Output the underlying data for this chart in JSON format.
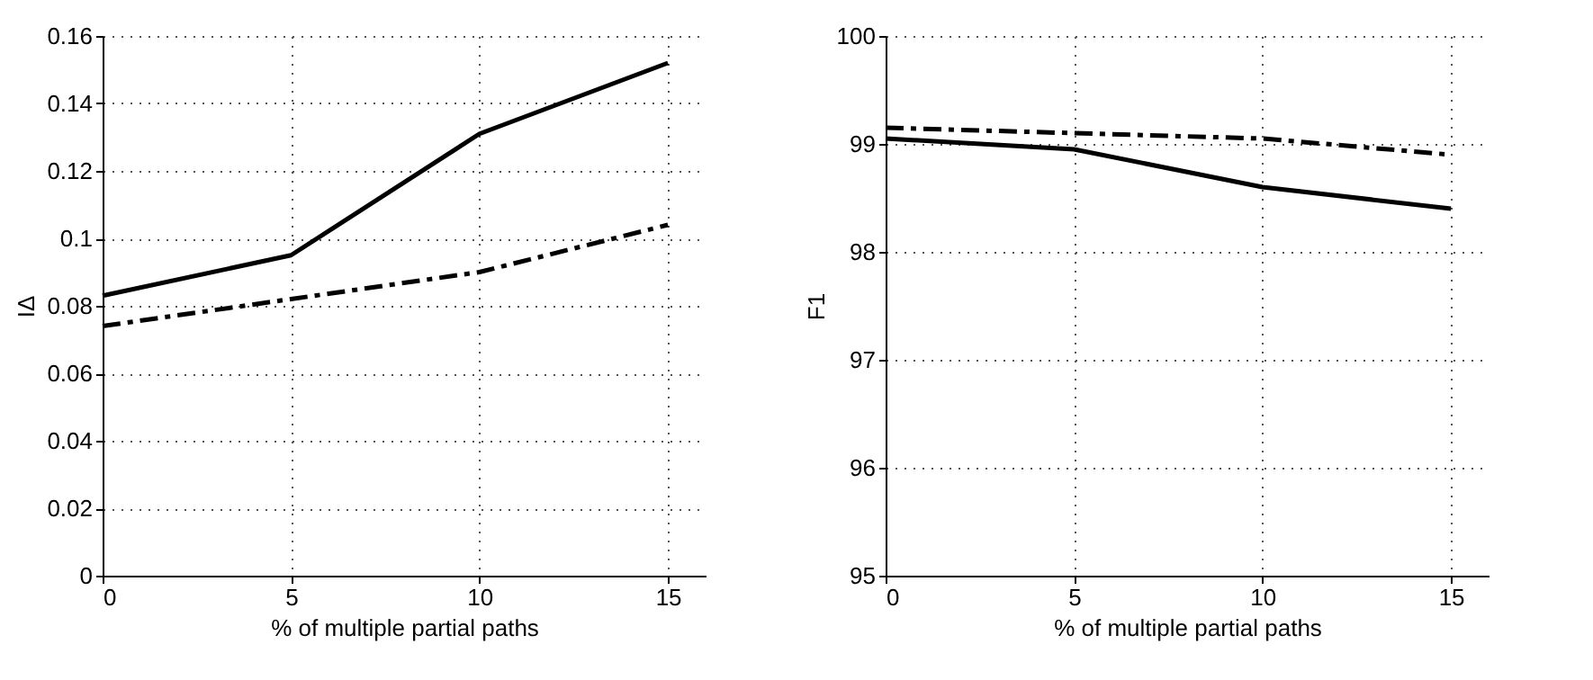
{
  "chart_data": [
    {
      "type": "line",
      "xlabel": "% of multiple partial paths",
      "ylabel": "IΔ",
      "x": [
        0,
        5,
        10,
        15
      ],
      "xlim": [
        0,
        16
      ],
      "xticks": [
        0,
        5,
        10,
        15
      ],
      "ylim": [
        0,
        0.16
      ],
      "yticks": [
        0,
        0.02,
        0.04,
        0.06,
        0.08,
        {
          "value": 0.1,
          "label": "0.1"
        },
        0.12,
        0.14,
        0.16
      ],
      "grid": true,
      "legend": false,
      "series": [
        {
          "color": "#000000",
          "line_style": "solid",
          "values": [
            0.083,
            0.095,
            0.131,
            0.152
          ]
        },
        {
          "color": "#000000",
          "line_style": "dashed",
          "values": [
            0.074,
            0.082,
            0.09,
            0.104
          ]
        }
      ]
    },
    {
      "type": "line",
      "xlabel": "% of multiple partial paths",
      "ylabel": "F1",
      "x": [
        0,
        5,
        10,
        15
      ],
      "xlim": [
        0,
        16
      ],
      "xticks": [
        0,
        5,
        10,
        15
      ],
      "ylim": [
        95,
        100
      ],
      "yticks": [
        95,
        96,
        97,
        98,
        99,
        100
      ],
      "grid": true,
      "legend": false,
      "series": [
        {
          "color": "#000000",
          "line_style": "solid",
          "values": [
            99.05,
            98.95,
            98.6,
            98.4
          ]
        },
        {
          "color": "#000000",
          "line_style": "dashed",
          "values": [
            99.15,
            99.1,
            99.05,
            98.9
          ]
        }
      ]
    }
  ]
}
